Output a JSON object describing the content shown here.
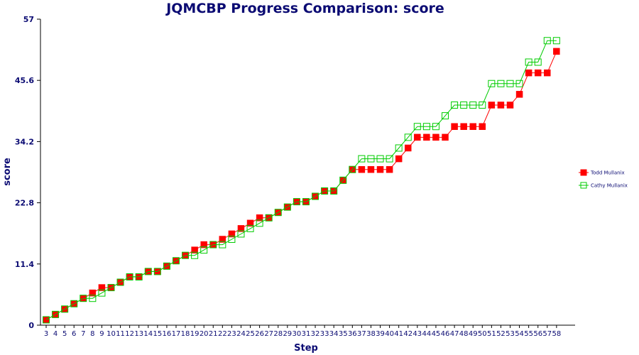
{
  "chart_data": {
    "type": "line",
    "title": "JQMCBP Progress Comparison: score",
    "xlabel": "Step",
    "ylabel": "score",
    "ylim": [
      0,
      57
    ],
    "yticks": [
      "0",
      "11.4",
      "22.8",
      "34.2",
      "45.6",
      "57"
    ],
    "x": [
      3,
      4,
      5,
      6,
      7,
      8,
      9,
      10,
      11,
      12,
      13,
      14,
      15,
      16,
      17,
      18,
      19,
      20,
      21,
      22,
      23,
      24,
      25,
      26,
      27,
      28,
      29,
      30,
      31,
      32,
      33,
      34,
      35,
      36,
      37,
      38,
      39,
      40,
      41,
      42,
      43,
      44,
      45,
      46,
      47,
      48,
      49,
      50,
      51,
      52,
      53,
      54,
      55,
      56,
      57,
      58
    ],
    "grid": false,
    "legend_position": "right",
    "series": [
      {
        "name": "Todd Mullanix",
        "color": "#ff0000",
        "marker": "filled-square",
        "values": [
          1,
          2,
          3,
          4,
          5,
          6,
          7,
          7,
          8,
          9,
          9,
          10,
          10,
          11,
          12,
          13,
          14,
          15,
          15,
          16,
          17,
          18,
          19,
          20,
          20,
          21,
          22,
          23,
          23,
          24,
          25,
          25,
          27,
          29,
          29,
          29,
          29,
          29,
          31,
          33,
          35,
          35,
          35,
          35,
          37,
          37,
          37,
          37,
          41,
          41,
          41,
          43,
          47,
          47,
          47,
          51
        ]
      },
      {
        "name": "Cathy Mullanix",
        "color": "#00cc00",
        "marker": "hollow-square",
        "values": [
          1,
          2,
          3,
          4,
          5,
          5,
          6,
          7,
          8,
          9,
          9,
          10,
          10,
          11,
          12,
          13,
          13,
          14,
          15,
          15,
          16,
          17,
          18,
          19,
          20,
          21,
          22,
          23,
          23,
          24,
          25,
          25,
          27,
          29,
          31,
          31,
          31,
          31,
          33,
          35,
          37,
          37,
          37,
          39,
          41,
          41,
          41,
          41,
          45,
          45,
          45,
          45,
          49,
          49,
          53,
          53
        ]
      }
    ]
  }
}
